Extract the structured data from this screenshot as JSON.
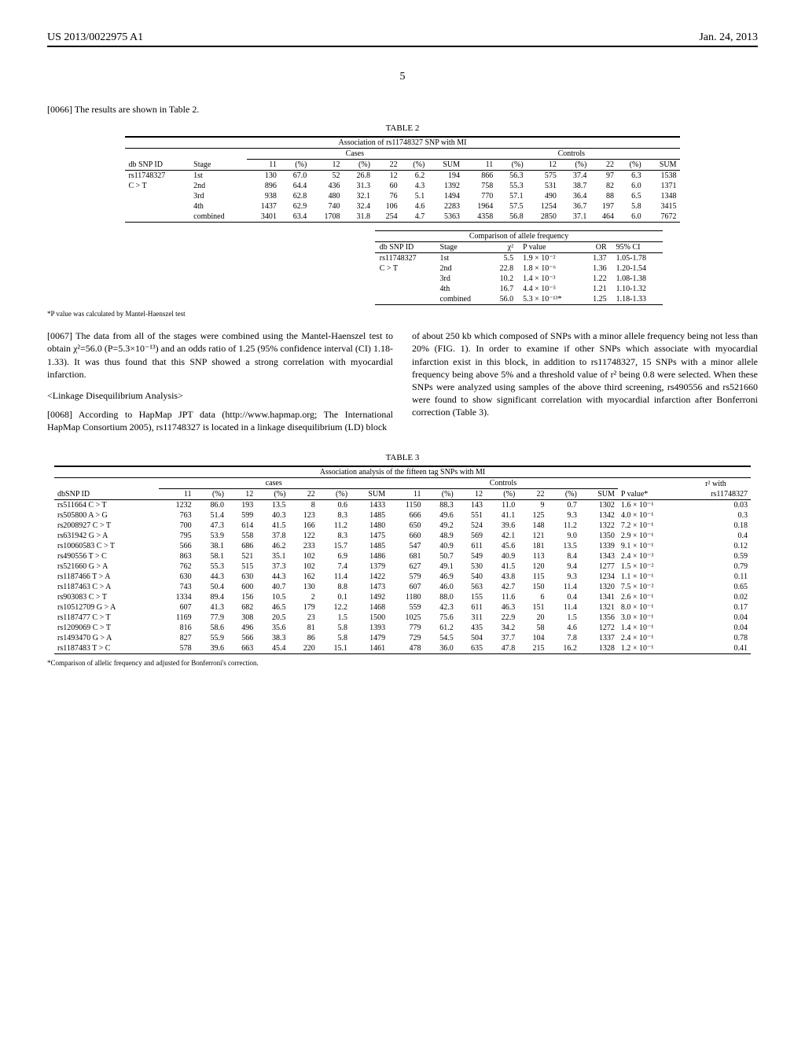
{
  "header": {
    "pubnum": "US 2013/0022975 A1",
    "date": "Jan. 24, 2013",
    "page": "5"
  },
  "para66": "[0066]   The results are shown in Table 2.",
  "table2": {
    "title": "TABLE 2",
    "caption": "Association of rs11748327 SNP with MI",
    "group_cases": "Cases",
    "group_controls": "Controls",
    "headers": [
      "db SNP ID",
      "Stage",
      "11",
      "(%)",
      "12",
      "(%)",
      "22",
      "(%)",
      "SUM",
      "11",
      "(%)",
      "12",
      "(%)",
      "22",
      "(%)",
      "SUM"
    ],
    "snp_id": "rs11748327",
    "snp_sub": "C > T",
    "rows": [
      [
        "1st",
        "130",
        "67.0",
        "52",
        "26.8",
        "12",
        "6.2",
        "194",
        "866",
        "56.3",
        "575",
        "37.4",
        "97",
        "6.3",
        "1538"
      ],
      [
        "2nd",
        "896",
        "64.4",
        "436",
        "31.3",
        "60",
        "4.3",
        "1392",
        "758",
        "55.3",
        "531",
        "38.7",
        "82",
        "6.0",
        "1371"
      ],
      [
        "3rd",
        "938",
        "62.8",
        "480",
        "32.1",
        "76",
        "5.1",
        "1494",
        "770",
        "57.1",
        "490",
        "36.4",
        "88",
        "6.5",
        "1348"
      ],
      [
        "4th",
        "1437",
        "62.9",
        "740",
        "32.4",
        "106",
        "4.6",
        "2283",
        "1964",
        "57.5",
        "1254",
        "36.7",
        "197",
        "5.8",
        "3415"
      ],
      [
        "combined",
        "3401",
        "63.4",
        "1708",
        "31.8",
        "254",
        "4.7",
        "5363",
        "4358",
        "56.8",
        "2850",
        "37.1",
        "464",
        "6.0",
        "7672"
      ]
    ],
    "comp_title": "Comparison of allele frequency",
    "comp_headers": [
      "db SNP ID",
      "Stage",
      "χ²",
      "P value",
      "OR",
      "95% CI"
    ],
    "comp_snp": "rs11748327",
    "comp_sub": "C > T",
    "comp_rows": [
      [
        "1st",
        "5.5",
        "1.9 × 10⁻²",
        "1.37",
        "1.05-1.78"
      ],
      [
        "2nd",
        "22.8",
        "1.8 × 10⁻⁶",
        "1.36",
        "1.20-1.54"
      ],
      [
        "3rd",
        "10.2",
        "1.4 × 10⁻³",
        "1.22",
        "1.08-1.38"
      ],
      [
        "4th",
        "16.7",
        "4.4 × 10⁻⁵",
        "1.21",
        "1.10-1.32"
      ],
      [
        "combined",
        "56.0",
        "5.3 × 10⁻¹³*",
        "1.25",
        "1.18-1.33"
      ]
    ],
    "footnote": "*P value was calculated by Mantel-Haenszel test"
  },
  "para67": "[0067]   The data from all of the stages were combined using the Mantel-Haenszel test to obtain χ²=56.0 (P=5.3×10⁻¹³) and an odds ratio of 1.25 (95% confidence interval (CI) 1.18-1.33). It was thus found that this SNP showed a strong correlation with myocardial infarction.",
  "ld_title": "<Linkage Disequilibrium Analysis>",
  "para68": "[0068]   According to HapMap JPT data (http://www.hapmap.org; The International HapMap Consortium 2005), rs11748327 is located in a linkage disequilibrium (LD) block",
  "para68b": "of about 250 kb which composed of SNPs with a minor allele frequency being not less than 20% (FIG. 1). In order to examine if other SNPs which associate with myocardial infarction exist in this block, in addition to rs11748327, 15 SNPs with a minor allele frequency being above 5% and a threshold value of r² being 0.8 were selected. When these SNPs were analyzed using samples of the above third screening, rs490556 and rs521660 were found to show significant correlation with myocardial infarction after Bonferroni correction (Table 3).",
  "table3": {
    "title": "TABLE 3",
    "caption": "Association analysis of the fifteen tag SNPs with MI",
    "group_cases": "cases",
    "group_controls": "Controls",
    "headers": [
      "dbSNP ID",
      "11",
      "(%)",
      "12",
      "(%)",
      "22",
      "(%)",
      "SUM",
      "11",
      "(%)",
      "12",
      "(%)",
      "22",
      "(%)",
      "SUM",
      "P value*",
      "r² with rs11748327"
    ],
    "rows": [
      [
        "rs511664 C > T",
        "1232",
        "86.0",
        "193",
        "13.5",
        "8",
        "0.6",
        "1433",
        "1150",
        "88.3",
        "143",
        "11.0",
        "9",
        "0.7",
        "1302",
        "1.6 × 10⁻¹",
        "0.03"
      ],
      [
        "rs505800 A > G",
        "763",
        "51.4",
        "599",
        "40.3",
        "123",
        "8.3",
        "1485",
        "666",
        "49.6",
        "551",
        "41.1",
        "125",
        "9.3",
        "1342",
        "4.0 × 10⁻¹",
        "0.3"
      ],
      [
        "rs2008927 C > T",
        "700",
        "47.3",
        "614",
        "41.5",
        "166",
        "11.2",
        "1480",
        "650",
        "49.2",
        "524",
        "39.6",
        "148",
        "11.2",
        "1322",
        "7.2 × 10⁻¹",
        "0.18"
      ],
      [
        "rs631942 G > A",
        "795",
        "53.9",
        "558",
        "37.8",
        "122",
        "8.3",
        "1475",
        "660",
        "48.9",
        "569",
        "42.1",
        "121",
        "9.0",
        "1350",
        "2.9 × 10⁻¹",
        "0.4"
      ],
      [
        "rs10060583 C > T",
        "566",
        "38.1",
        "686",
        "46.2",
        "233",
        "15.7",
        "1485",
        "547",
        "40.9",
        "611",
        "45.6",
        "181",
        "13.5",
        "1339",
        "9.1 × 10⁻¹",
        "0.12"
      ],
      [
        "rs490556 T > C",
        "863",
        "58.1",
        "521",
        "35.1",
        "102",
        "6.9",
        "1486",
        "681",
        "50.7",
        "549",
        "40.9",
        "113",
        "8.4",
        "1343",
        "2.4 × 10⁻³",
        "0.59"
      ],
      [
        "rs521660 G > A",
        "762",
        "55.3",
        "515",
        "37.3",
        "102",
        "7.4",
        "1379",
        "627",
        "49.1",
        "530",
        "41.5",
        "120",
        "9.4",
        "1277",
        "1.5 × 10⁻²",
        "0.79"
      ],
      [
        "rs1187466 T > A",
        "630",
        "44.3",
        "630",
        "44.3",
        "162",
        "11.4",
        "1422",
        "579",
        "46.9",
        "540",
        "43.8",
        "115",
        "9.3",
        "1234",
        "1.1 × 10⁻¹",
        "0.11"
      ],
      [
        "rs1187463 C > A",
        "743",
        "50.4",
        "600",
        "40.7",
        "130",
        "8.8",
        "1473",
        "607",
        "46.0",
        "563",
        "42.7",
        "150",
        "11.4",
        "1320",
        "7.5 × 10⁻²",
        "0.65"
      ],
      [
        "rs903083 C > T",
        "1334",
        "89.4",
        "156",
        "10.5",
        "2",
        "0.1",
        "1492",
        "1180",
        "88.0",
        "155",
        "11.6",
        "6",
        "0.4",
        "1341",
        "2.6 × 10⁻¹",
        "0.02"
      ],
      [
        "rs10512709 G > A",
        "607",
        "41.3",
        "682",
        "46.5",
        "179",
        "12.2",
        "1468",
        "559",
        "42.3",
        "611",
        "46.3",
        "151",
        "11.4",
        "1321",
        "8.0 × 10⁻¹",
        "0.17"
      ],
      [
        "rs1187477 C > T",
        "1169",
        "77.9",
        "308",
        "20.5",
        "23",
        "1.5",
        "1500",
        "1025",
        "75.6",
        "311",
        "22.9",
        "20",
        "1.5",
        "1356",
        "3.0 × 10⁻¹",
        "0.04"
      ],
      [
        "rs1209069 C > T",
        "816",
        "58.6",
        "496",
        "35.6",
        "81",
        "5.8",
        "1393",
        "779",
        "61.2",
        "435",
        "34.2",
        "58",
        "4.6",
        "1272",
        "1.4 × 10⁻¹",
        "0.04"
      ],
      [
        "rs1493470 G > A",
        "827",
        "55.9",
        "566",
        "38.3",
        "86",
        "5.8",
        "1479",
        "729",
        "54.5",
        "504",
        "37.7",
        "104",
        "7.8",
        "1337",
        "2.4 × 10⁻¹",
        "0.78"
      ],
      [
        "rs1187483 T > C",
        "578",
        "39.6",
        "663",
        "45.4",
        "220",
        "15.1",
        "1461",
        "478",
        "36.0",
        "635",
        "47.8",
        "215",
        "16.2",
        "1328",
        "1.2 × 10⁻¹",
        "0.41"
      ]
    ],
    "footnote": "*Comparison of allelic frequency and adjusted for Bonferroni's correction."
  }
}
